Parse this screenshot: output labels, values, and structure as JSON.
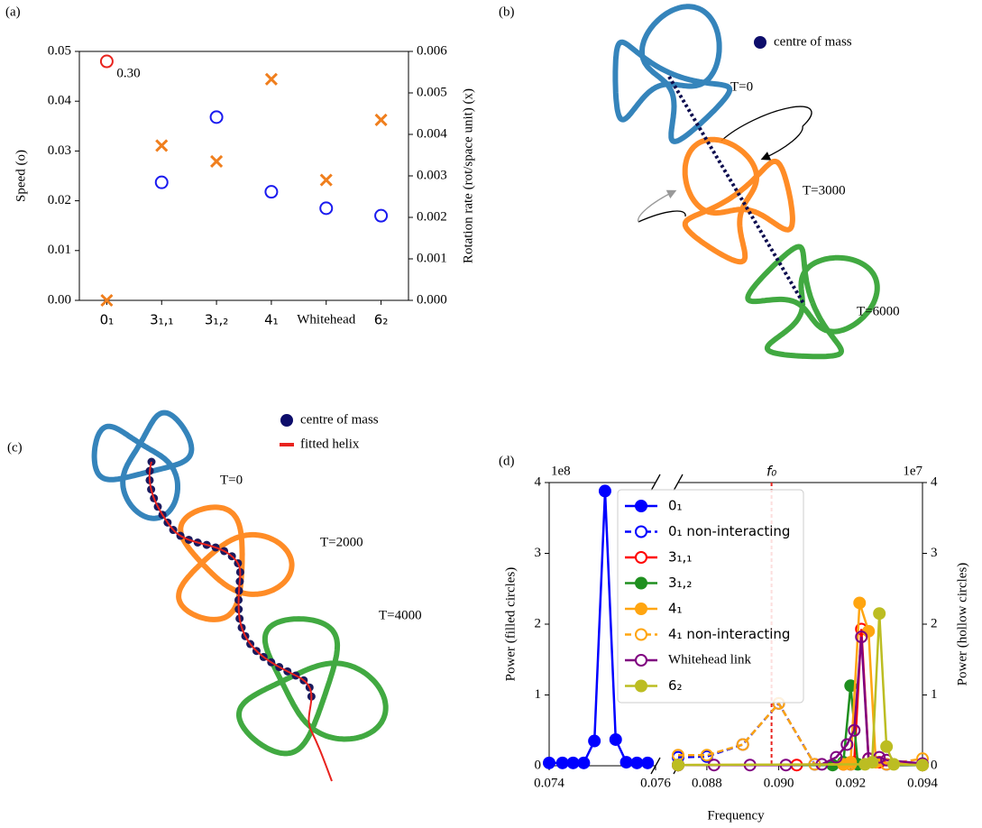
{
  "chart_data": [
    {
      "type": "scatter",
      "panel_label": "(a)",
      "categories": [
        "0₁",
        "3₁,₁",
        "3₁,₂",
        "4₁",
        "Whitehead",
        "6₂"
      ],
      "ylabel": "Speed (o)",
      "y2label": "Rotation rate (rot/space unit) (x)",
      "ylim": [
        0,
        0.05
      ],
      "yticks": [
        {
          "value": 0,
          "label": "0.00"
        },
        0.01,
        0.02,
        0.03,
        0.04,
        0.05
      ],
      "y2lim": [
        0,
        0.006
      ],
      "y2ticks": [
        {
          "value": 0,
          "label": "0.000"
        },
        0.001,
        0.002,
        0.003,
        0.004,
        0.005,
        0.006
      ],
      "series": [
        {
          "color": "#1a1aef",
          "marker": "o",
          "values": [
            null,
            0.0237,
            0.0368,
            0.0218,
            0.0185,
            0.017
          ]
        },
        {
          "color": "#f07f1e",
          "marker": "x",
          "axis": "y2",
          "values": [
            0,
            0.00373,
            0.00335,
            0.00533,
            0.0029,
            0.00435
          ]
        }
      ],
      "annotations": [
        {
          "text": "0.30",
          "x": "0₁",
          "y": 0.048,
          "color": "#e8231e"
        }
      ]
    },
    {
      "type": "line",
      "panel_label": "(d)",
      "xlabel": "Frequency",
      "ylabel": "Power (filled circles)",
      "y2label": "Power   (hollow circles)",
      "x_segments": [
        {
          "xlim": [
            0.074,
            0.076
          ],
          "xticks": [
            0.074,
            0.076
          ]
        },
        {
          "xlim": [
            0.0872,
            0.094
          ],
          "xticks": [
            0.088,
            {
              "value": 0.09,
              "label": "0.090"
            },
            0.092,
            0.094
          ]
        }
      ],
      "ylim": [
        0,
        4
      ],
      "yticks": [
        0,
        1,
        2,
        3,
        4
      ],
      "y_offset": "1e8",
      "y2lim": [
        0,
        4
      ],
      "y2ticks": [
        0,
        1,
        2,
        3,
        4
      ],
      "y2_offset": "1e7",
      "vline": {
        "x": 0.0898,
        "label": "f₀",
        "color": "#e8231e"
      },
      "series": [
        {
          "name": "0₁",
          "color": "#0000ff",
          "marker": "filled",
          "x": [
            0.074,
            0.07425,
            0.07445,
            0.07465,
            0.07485,
            0.07505,
            0.07525,
            0.07545,
            0.07565,
            0.07585
          ],
          "values": [
            0.04,
            0.04,
            0.04,
            0.04,
            0.35,
            3.88,
            0.37,
            0.05,
            0.04,
            0.04
          ]
        },
        {
          "name": "0₁ non-interacting",
          "color": "#0000ff",
          "marker": "hollow",
          "dashed": true,
          "axis": "y2",
          "x": [
            0.0872,
            0.088,
            0.089,
            0.09,
            0.091,
            0.092,
            0.093,
            0.094
          ],
          "values": [
            0.12,
            0.13,
            0.3,
            0.88,
            0.02,
            0.02,
            0.02,
            0.02
          ]
        },
        {
          "name": "3₁,₁",
          "color": "#ff0000",
          "marker": "hollow",
          "axis": "y2",
          "x": [
            0.0872,
            0.0905,
            0.0918,
            0.0921,
            0.0923,
            0.0925,
            0.0928,
            0.094
          ],
          "values": [
            0.01,
            0.01,
            0.02,
            0.05,
            1.93,
            0.1,
            0.05,
            0.01
          ]
        },
        {
          "name": "3₁,₂",
          "color": "#1f8f1f",
          "marker": "filled",
          "x": [
            0.0872,
            0.0915,
            0.0918,
            0.092,
            0.0922,
            0.094
          ],
          "values": [
            0.01,
            0.01,
            0.05,
            1.13,
            0.02,
            0.01
          ]
        },
        {
          "name": "4₁",
          "color": "#ffa510",
          "marker": "filled",
          "x": [
            0.0872,
            0.0918,
            0.092,
            0.09225,
            0.0925,
            0.0927,
            0.094
          ],
          "values": [
            0.01,
            0.02,
            0.05,
            2.3,
            1.9,
            0.05,
            0.01
          ]
        },
        {
          "name": "4₁ non-interacting",
          "color": "#ffa510",
          "marker": "hollow",
          "dashed": true,
          "axis": "y2",
          "x": [
            0.0872,
            0.088,
            0.089,
            0.09,
            0.091,
            0.092,
            0.093,
            0.094
          ],
          "values": [
            0.15,
            0.15,
            0.3,
            0.88,
            0.02,
            0.02,
            0.02,
            0.1
          ]
        },
        {
          "name": "Whitehead link",
          "color": "#800080",
          "marker": "hollow",
          "axis": "y2",
          "x": [
            0.0872,
            0.0882,
            0.0892,
            0.0902,
            0.0912,
            0.0916,
            0.0919,
            0.0921,
            0.0923,
            0.0925,
            0.0928,
            0.093,
            0.094
          ],
          "values": [
            0.01,
            0.01,
            0.01,
            0.01,
            0.02,
            0.12,
            0.3,
            0.5,
            1.82,
            0.1,
            0.12,
            0.08,
            0.03
          ]
        },
        {
          "name": "6₂",
          "color": "#bcbd22",
          "marker": "filled",
          "x": [
            0.0872,
            0.0924,
            0.0926,
            0.0928,
            0.093,
            0.0932,
            0.094
          ],
          "values": [
            0.01,
            0.02,
            0.05,
            2.15,
            0.27,
            0.02,
            0.01
          ]
        }
      ]
    }
  ],
  "illustrations": [
    {
      "panel_label": "(b)",
      "legend": [
        "centre of mass"
      ],
      "snapshots": [
        {
          "label": "T=0",
          "color": "#1f77b4"
        },
        {
          "label": "T=3000",
          "color": "#ff7f0e"
        },
        {
          "label": "T=6000",
          "color": "#2ca02c"
        }
      ]
    },
    {
      "panel_label": "(c)",
      "legend": [
        "centre of mass",
        "fitted helix"
      ],
      "snapshots": [
        {
          "label": "T=0",
          "color": "#1f77b4"
        },
        {
          "label": "T=2000",
          "color": "#ff7f0e"
        },
        {
          "label": "T=4000",
          "color": "#2ca02c"
        }
      ]
    }
  ]
}
